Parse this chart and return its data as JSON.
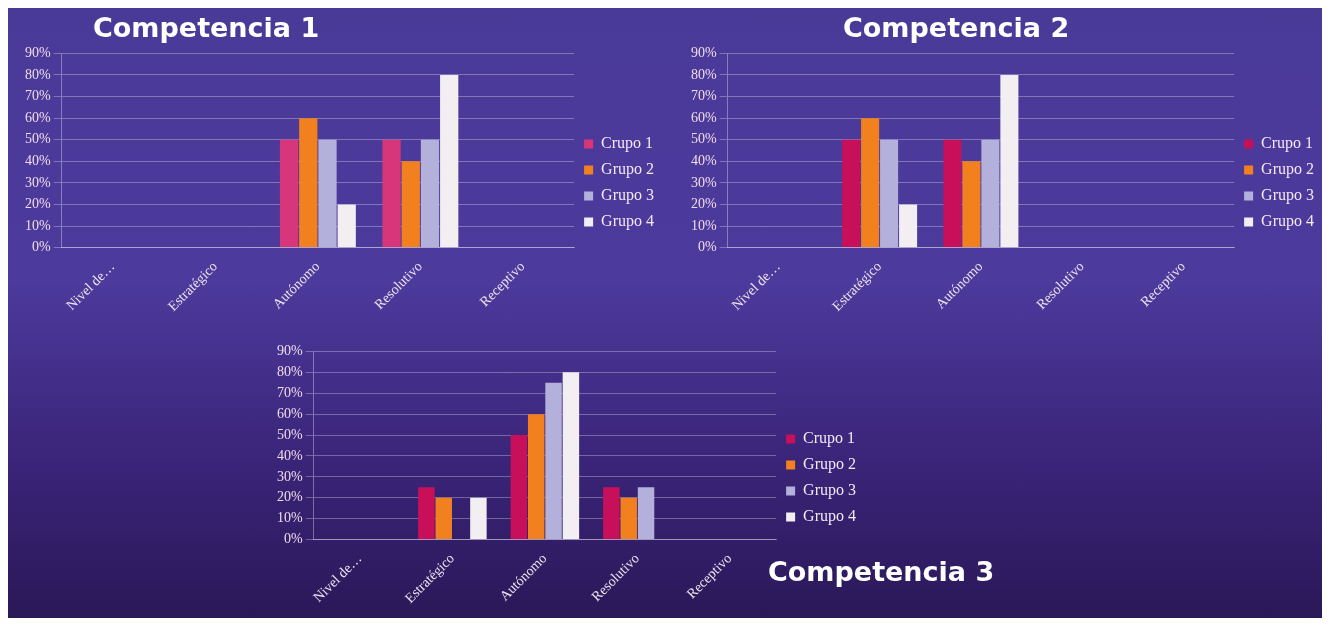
{
  "chart_data": [
    {
      "type": "bar",
      "title": "Competencia 1",
      "categories": [
        "Nivel de…",
        "Estratégico",
        "Autónomo",
        "Resolutivo",
        "Receptivo"
      ],
      "series": [
        {
          "name": "Crupo 1",
          "color": "#d8367a",
          "values": [
            null,
            null,
            50,
            50,
            null
          ]
        },
        {
          "name": "Grupo 2",
          "color": "#f2801e",
          "values": [
            null,
            null,
            60,
            40,
            null
          ]
        },
        {
          "name": "Grupo 3",
          "color": "#b4b0dc",
          "values": [
            null,
            null,
            50,
            50,
            null
          ]
        },
        {
          "name": "Grupo 4",
          "color": "#f2eef2",
          "values": [
            null,
            null,
            20,
            80,
            null
          ]
        }
      ],
      "ylim": [
        0,
        90
      ],
      "yticks": [
        {
          "value": 0,
          "label": "0%"
        },
        {
          "value": 10,
          "label": "10%"
        },
        {
          "value": 20,
          "label": "20%"
        },
        {
          "value": 30,
          "label": "30%"
        },
        {
          "value": 40,
          "label": "40%"
        },
        {
          "value": 50,
          "label": "50%"
        },
        {
          "value": 60,
          "label": "60%"
        },
        {
          "value": 70,
          "label": "70%"
        },
        {
          "value": 80,
          "label": "80%"
        },
        {
          "value": 90,
          "label": "90%"
        }
      ],
      "grid": "y",
      "legend": "right"
    },
    {
      "type": "bar",
      "title": "Competencia 2",
      "categories": [
        "Nivel de…",
        "Estratégico",
        "Autónomo",
        "Resolutivo",
        "Receptivo"
      ],
      "series": [
        {
          "name": "Crupo 1",
          "color": "#c8105a",
          "values": [
            null,
            50,
            50,
            null,
            null
          ]
        },
        {
          "name": "Grupo 2",
          "color": "#f2801e",
          "values": [
            null,
            60,
            40,
            null,
            null
          ]
        },
        {
          "name": "Grupo 3",
          "color": "#b4b0dc",
          "values": [
            null,
            50,
            50,
            null,
            null
          ]
        },
        {
          "name": "Grupo 4",
          "color": "#f2eef2",
          "values": [
            null,
            20,
            80,
            null,
            null
          ]
        }
      ],
      "ylim": [
        0,
        90
      ],
      "yticks": [
        {
          "value": 0,
          "label": "0%"
        },
        {
          "value": 10,
          "label": "10%"
        },
        {
          "value": 20,
          "label": "20%"
        },
        {
          "value": 30,
          "label": "30%"
        },
        {
          "value": 40,
          "label": "40%"
        },
        {
          "value": 50,
          "label": "50%"
        },
        {
          "value": 60,
          "label": "60%"
        },
        {
          "value": 70,
          "label": "70%"
        },
        {
          "value": 80,
          "label": "80%"
        },
        {
          "value": 90,
          "label": "90%"
        }
      ],
      "grid": "y",
      "legend": "right"
    },
    {
      "type": "bar",
      "title": "Competencia 3",
      "categories": [
        "Nivel de…",
        "Estratégico",
        "Autónomo",
        "Resolutivo",
        "Receptivo"
      ],
      "series": [
        {
          "name": "Crupo 1",
          "color": "#c8105a",
          "values": [
            null,
            25,
            50,
            25,
            null
          ]
        },
        {
          "name": "Grupo 2",
          "color": "#f2801e",
          "values": [
            null,
            20,
            60,
            20,
            null
          ]
        },
        {
          "name": "Grupo 3",
          "color": "#b4b0dc",
          "values": [
            null,
            null,
            75,
            25,
            null
          ]
        },
        {
          "name": "Grupo 4",
          "color": "#f2eef2",
          "values": [
            null,
            20,
            80,
            null,
            null
          ]
        }
      ],
      "ylim": [
        0,
        90
      ],
      "yticks": [
        {
          "value": 0,
          "label": "0%"
        },
        {
          "value": 10,
          "label": "10%"
        },
        {
          "value": 20,
          "label": "20%"
        },
        {
          "value": 30,
          "label": "30%"
        },
        {
          "value": 40,
          "label": "40%"
        },
        {
          "value": 50,
          "label": "50%"
        },
        {
          "value": 60,
          "label": "60%"
        },
        {
          "value": 70,
          "label": "70%"
        },
        {
          "value": 80,
          "label": "80%"
        },
        {
          "value": 90,
          "label": "90%"
        }
      ],
      "grid": "y",
      "legend": "right"
    }
  ]
}
